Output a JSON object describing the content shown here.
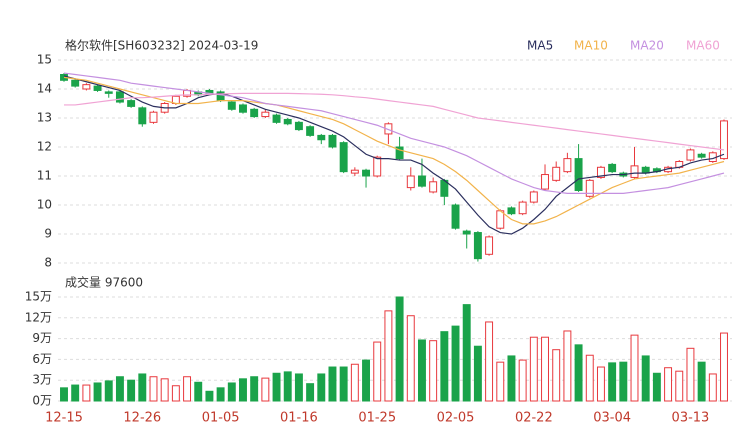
{
  "chart_data": [
    {
      "type": "candlestick",
      "title": "格尔软件[SH603232] 2024-03-19",
      "up_color": "#e8383d",
      "down_color": "#1aa34a",
      "grid": true,
      "legend": "top-right",
      "ylim": [
        8,
        15
      ],
      "yticks": [
        8,
        9,
        10,
        11,
        12,
        13,
        14,
        15
      ],
      "open": [
        14.5,
        14.3,
        14.0,
        14.1,
        13.9,
        13.9,
        13.6,
        13.35,
        12.85,
        13.2,
        13.5,
        13.75,
        13.9,
        13.95,
        13.9,
        13.55,
        13.45,
        13.3,
        13.05,
        13.1,
        12.95,
        12.85,
        12.7,
        12.4,
        12.4,
        12.15,
        11.1,
        11.2,
        11.0,
        12.45,
        12.0,
        10.6,
        11.0,
        10.45,
        10.85,
        10.0,
        9.1,
        9.05,
        8.3,
        9.2,
        9.9,
        9.7,
        10.1,
        10.55,
        10.85,
        11.15,
        11.6,
        10.3,
        10.95,
        11.4,
        11.1,
        10.95,
        11.3,
        11.25,
        11.15,
        11.3,
        11.55,
        11.75,
        11.5,
        11.6
      ],
      "close": [
        14.3,
        14.1,
        14.15,
        13.95,
        13.85,
        13.55,
        13.4,
        12.8,
        13.2,
        13.5,
        13.75,
        13.95,
        13.8,
        13.85,
        13.6,
        13.3,
        13.2,
        13.05,
        13.2,
        12.85,
        12.8,
        12.6,
        12.4,
        12.25,
        12.0,
        11.15,
        11.2,
        11.0,
        11.65,
        12.8,
        11.6,
        11.0,
        10.65,
        10.8,
        10.3,
        9.2,
        9.0,
        8.15,
        8.9,
        9.8,
        9.7,
        10.1,
        10.45,
        11.05,
        11.3,
        11.6,
        10.5,
        10.85,
        11.3,
        11.15,
        11.0,
        11.35,
        11.1,
        11.15,
        11.3,
        11.5,
        11.9,
        11.65,
        11.8,
        12.9
      ],
      "high": [
        14.55,
        14.35,
        14.2,
        14.15,
        13.95,
        13.95,
        13.65,
        13.4,
        13.25,
        13.55,
        13.8,
        14.0,
        13.95,
        14.0,
        13.95,
        13.6,
        13.5,
        13.35,
        13.3,
        13.15,
        13.0,
        12.9,
        12.75,
        12.45,
        12.45,
        12.2,
        11.3,
        11.25,
        11.7,
        12.85,
        12.35,
        11.3,
        11.6,
        10.95,
        10.9,
        10.05,
        9.15,
        9.1,
        8.95,
        9.85,
        9.95,
        10.15,
        10.5,
        11.4,
        11.5,
        11.8,
        12.1,
        10.9,
        11.35,
        11.45,
        11.15,
        12.0,
        11.35,
        11.3,
        11.35,
        11.55,
        11.95,
        11.8,
        11.85,
        12.95
      ],
      "low": [
        14.25,
        14.05,
        13.95,
        13.9,
        13.7,
        13.5,
        13.35,
        12.7,
        12.8,
        13.15,
        13.45,
        13.7,
        13.75,
        13.8,
        13.55,
        13.25,
        13.15,
        13.0,
        13.0,
        12.8,
        12.75,
        12.55,
        12.35,
        12.1,
        11.95,
        11.1,
        11.0,
        10.6,
        10.95,
        12.1,
        11.55,
        10.5,
        10.6,
        10.4,
        10.0,
        9.15,
        8.5,
        8.05,
        8.25,
        9.15,
        9.65,
        9.65,
        10.05,
        10.5,
        10.8,
        11.1,
        10.45,
        10.25,
        10.9,
        11.1,
        10.95,
        10.9,
        11.05,
        11.1,
        11.1,
        11.25,
        11.5,
        11.6,
        11.45,
        11.55
      ],
      "series": [
        {
          "name": "MA5",
          "color": "#2b2f5e",
          "values": [
            14.45,
            14.35,
            14.25,
            14.15,
            14.05,
            13.95,
            13.75,
            13.55,
            13.4,
            13.35,
            13.35,
            13.5,
            13.7,
            13.8,
            13.85,
            13.75,
            13.6,
            13.45,
            13.3,
            13.2,
            13.1,
            13.0,
            12.85,
            12.7,
            12.55,
            12.35,
            12.05,
            11.75,
            11.6,
            11.6,
            11.55,
            11.55,
            11.4,
            11.1,
            10.85,
            10.55,
            10.1,
            9.65,
            9.25,
            9.05,
            9.0,
            9.2,
            9.5,
            9.85,
            10.3,
            10.6,
            10.9,
            10.95,
            11.0,
            11.05,
            11.05,
            11.1,
            11.1,
            11.15,
            11.25,
            11.3,
            11.45,
            11.55,
            11.6,
            11.75
          ]
        },
        {
          "name": "MA10",
          "color": "#f2b34b",
          "values": [
            14.4,
            14.35,
            14.3,
            14.2,
            14.1,
            14.0,
            13.9,
            13.8,
            13.7,
            13.6,
            13.5,
            13.5,
            13.5,
            13.55,
            13.6,
            13.6,
            13.6,
            13.55,
            13.5,
            13.45,
            13.35,
            13.25,
            13.15,
            13.05,
            12.95,
            12.8,
            12.6,
            12.4,
            12.2,
            12.05,
            11.9,
            11.8,
            11.7,
            11.6,
            11.4,
            11.15,
            10.85,
            10.5,
            10.15,
            9.8,
            9.5,
            9.35,
            9.35,
            9.45,
            9.6,
            9.8,
            10.0,
            10.2,
            10.4,
            10.6,
            10.75,
            10.9,
            10.95,
            11.0,
            11.05,
            11.1,
            11.2,
            11.3,
            11.4,
            11.5
          ]
        },
        {
          "name": "MA20",
          "color": "#c490e0",
          "values": [
            14.55,
            14.5,
            14.45,
            14.4,
            14.35,
            14.3,
            14.2,
            14.15,
            14.1,
            14.05,
            14.0,
            13.95,
            13.9,
            13.85,
            13.8,
            13.75,
            13.7,
            13.6,
            13.5,
            13.45,
            13.4,
            13.35,
            13.3,
            13.25,
            13.15,
            13.05,
            12.95,
            12.85,
            12.75,
            12.6,
            12.45,
            12.3,
            12.2,
            12.1,
            12.0,
            11.85,
            11.7,
            11.5,
            11.3,
            11.1,
            10.9,
            10.75,
            10.6,
            10.5,
            10.45,
            10.4,
            10.4,
            10.4,
            10.4,
            10.4,
            10.4,
            10.45,
            10.5,
            10.55,
            10.6,
            10.7,
            10.8,
            10.9,
            11.0,
            11.1
          ]
        },
        {
          "name": "MA60",
          "color": "#f0a3d4",
          "values": [
            13.45,
            13.45,
            13.5,
            13.55,
            13.6,
            13.65,
            13.7,
            13.7,
            13.72,
            13.75,
            13.78,
            13.8,
            13.8,
            13.82,
            13.83,
            13.84,
            13.85,
            13.85,
            13.85,
            13.85,
            13.85,
            13.84,
            13.83,
            13.82,
            13.8,
            13.77,
            13.73,
            13.7,
            13.65,
            13.6,
            13.55,
            13.5,
            13.45,
            13.4,
            13.3,
            13.2,
            13.1,
            13.0,
            12.95,
            12.9,
            12.85,
            12.8,
            12.75,
            12.7,
            12.65,
            12.6,
            12.55,
            12.5,
            12.45,
            12.4,
            12.35,
            12.3,
            12.25,
            12.2,
            12.15,
            12.1,
            12.05,
            12.0,
            11.95,
            11.9
          ]
        }
      ]
    },
    {
      "type": "bar",
      "title": "成交量 97600",
      "grid": true,
      "categories": [
        "12-15",
        null,
        null,
        null,
        null,
        null,
        null,
        "12-26",
        null,
        null,
        null,
        null,
        null,
        null,
        "01-05",
        null,
        null,
        null,
        null,
        null,
        null,
        "01-16",
        null,
        null,
        null,
        null,
        null,
        null,
        "01-25",
        null,
        null,
        null,
        null,
        null,
        null,
        "02-05",
        null,
        null,
        null,
        null,
        null,
        null,
        "02-22",
        null,
        null,
        null,
        null,
        null,
        null,
        "03-04",
        null,
        null,
        null,
        null,
        null,
        null,
        "03-13",
        null,
        null,
        null
      ],
      "values": [
        1.9,
        2.3,
        2.3,
        2.6,
        2.9,
        3.5,
        3.0,
        3.9,
        3.5,
        3.2,
        2.2,
        3.5,
        2.7,
        1.4,
        1.9,
        2.6,
        3.2,
        3.5,
        3.3,
        4.0,
        4.2,
        3.9,
        2.5,
        3.9,
        4.9,
        4.9,
        5.3,
        5.9,
        8.5,
        13.0,
        15.0,
        12.3,
        8.8,
        8.7,
        10.0,
        10.8,
        13.9,
        7.9,
        11.4,
        5.6,
        6.5,
        5.9,
        9.2,
        9.2,
        7.4,
        10.1,
        8.1,
        6.6,
        4.9,
        5.5,
        5.6,
        9.5,
        6.5,
        4.0,
        4.8,
        4.3,
        7.6,
        5.6,
        3.9,
        9.8
      ],
      "ylim": [
        0,
        15
      ],
      "yticks": [
        {
          "value": 0,
          "label": "0万"
        },
        {
          "value": 3,
          "label": "3万"
        },
        {
          "value": 6,
          "label": "6万"
        },
        {
          "value": 9,
          "label": "9万"
        },
        {
          "value": 12,
          "label": "12万"
        },
        {
          "value": 15,
          "label": "15万"
        }
      ]
    }
  ]
}
